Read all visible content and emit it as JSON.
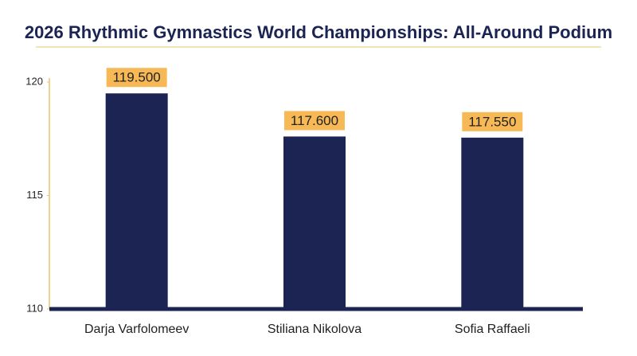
{
  "chart_data": {
    "type": "bar",
    "title": "2026 Rhythmic Gymnastics World Championships: All-Around Podium",
    "categories": [
      "Darja Varfolomeev",
      "Stiliana Nikolova",
      "Sofia Raffaeli"
    ],
    "values": [
      119.5,
      117.6,
      117.55
    ],
    "value_labels": [
      "119.500",
      "117.600",
      "117.550"
    ],
    "color": "#1b2452",
    "label_color": "#f7b955",
    "ylim": [
      110,
      120
    ],
    "yticks": [
      110,
      115,
      120
    ],
    "grid": false
  }
}
